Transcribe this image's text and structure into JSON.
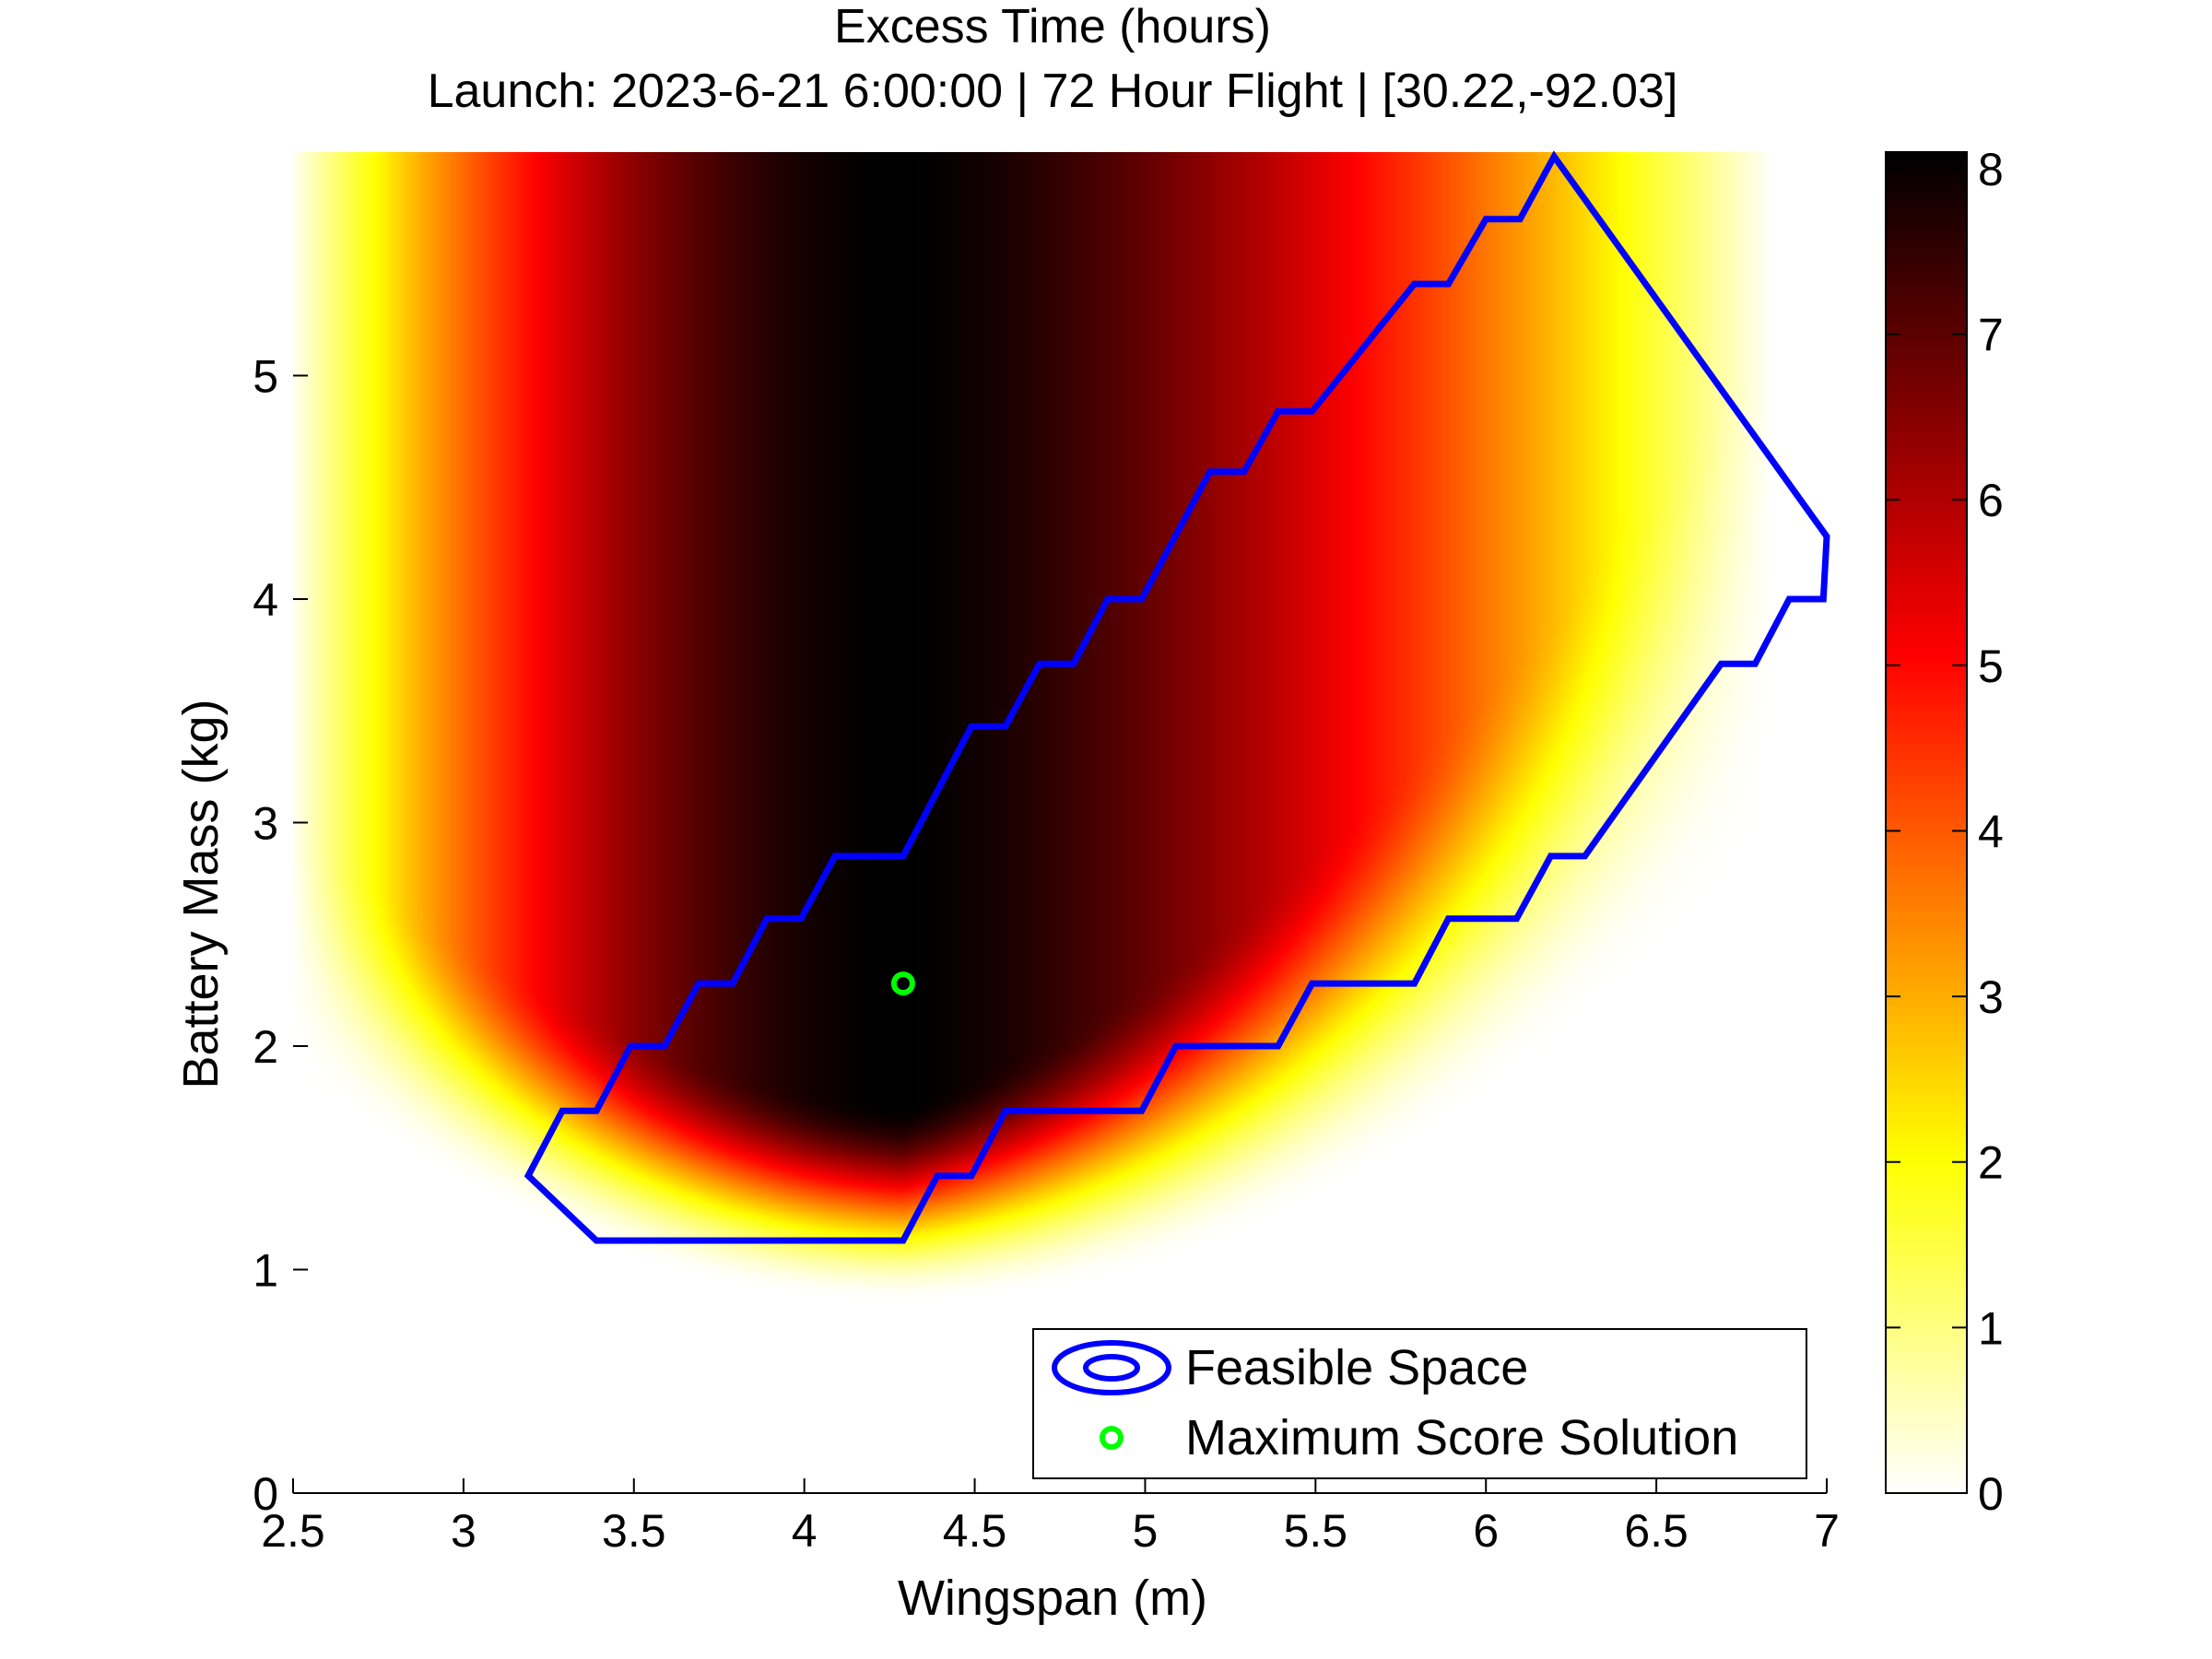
{
  "chart_data": {
    "type": "heatmap",
    "title": "Excess Time (hours)",
    "subtitle": "Launch: 2023-6-21 6:00:00 | 72 Hour Flight | [30.22,-92.03]",
    "xlabel": "Wingspan (m)",
    "ylabel": "Battery Mass (kg)",
    "xlim": [
      2.5,
      7
    ],
    "ylim": [
      0,
      6
    ],
    "x_ticks": [
      "2.5",
      "3",
      "3.5",
      "4",
      "4.5",
      "5",
      "5.5",
      "6",
      "6.5",
      "7"
    ],
    "y_ticks": [
      "0",
      "1",
      "2",
      "3",
      "4",
      "5"
    ],
    "colorbar": {
      "min": 0,
      "max": 8.1,
      "ticks": [
        "0",
        "1",
        "2",
        "3",
        "4",
        "5",
        "6",
        "7",
        "8"
      ],
      "colormap": "hot (reversed)"
    },
    "peak": {
      "x": 4.29,
      "value": 8.1
    },
    "feasible_boundary": {
      "name": "Feasible Space",
      "color": "#0000ff",
      "points": [
        [
          3.39,
          1.13
        ],
        [
          4.29,
          1.13
        ],
        [
          4.39,
          1.42
        ],
        [
          4.49,
          1.42
        ],
        [
          4.59,
          1.71
        ],
        [
          4.99,
          1.71
        ],
        [
          5.09,
          2.0
        ],
        [
          5.39,
          2.0
        ],
        [
          5.49,
          2.28
        ],
        [
          5.79,
          2.28
        ],
        [
          5.89,
          2.57
        ],
        [
          6.09,
          2.57
        ],
        [
          6.19,
          2.85
        ],
        [
          6.29,
          2.85
        ],
        [
          6.69,
          3.71
        ],
        [
          6.79,
          3.71
        ],
        [
          6.89,
          4.0
        ],
        [
          6.99,
          4.0
        ],
        [
          7.0,
          4.28
        ],
        [
          6.2,
          5.98
        ],
        [
          6.1,
          5.7
        ],
        [
          6.0,
          5.7
        ],
        [
          5.89,
          5.41
        ],
        [
          5.79,
          5.41
        ],
        [
          5.49,
          4.84
        ],
        [
          5.39,
          4.84
        ],
        [
          5.29,
          4.57
        ],
        [
          5.19,
          4.57
        ],
        [
          4.99,
          4.0
        ],
        [
          4.89,
          4.0
        ],
        [
          4.79,
          3.71
        ],
        [
          4.69,
          3.71
        ],
        [
          4.59,
          3.43
        ],
        [
          4.49,
          3.43
        ],
        [
          4.29,
          2.85
        ],
        [
          4.09,
          2.85
        ],
        [
          3.99,
          2.57
        ],
        [
          3.89,
          2.57
        ],
        [
          3.79,
          2.28
        ],
        [
          3.69,
          2.28
        ],
        [
          3.59,
          2.0
        ],
        [
          3.49,
          2.0
        ],
        [
          3.39,
          1.71
        ],
        [
          3.29,
          1.71
        ],
        [
          3.19,
          1.42
        ],
        [
          3.39,
          1.13
        ]
      ]
    },
    "max_score_solution": {
      "name": "Maximum Score Solution",
      "color": "#00ff00",
      "x": 4.29,
      "y": 2.28
    },
    "legend": {
      "position": "bottom-right",
      "entries": [
        "Feasible Space",
        "Maximum Score Solution"
      ]
    }
  }
}
